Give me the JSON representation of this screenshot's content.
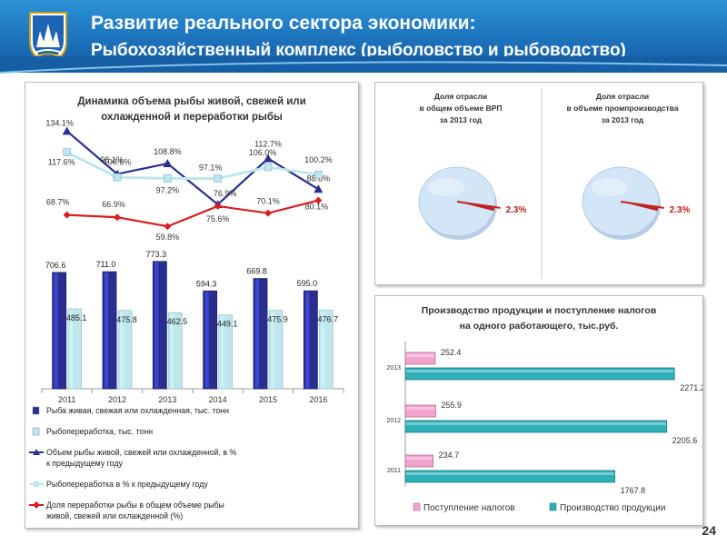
{
  "header": {
    "title_line1": "Развитие реального сектора экономики:",
    "title_line2": "Рыбохозяйственный комплекс (рыболовство и рыбоводство)"
  },
  "page_number": "24",
  "chart_data": [
    {
      "type": "bar+line",
      "title_line1": "Динамика объема рыбы живой, свежей или",
      "title_line2": "охлажденной и переработки рыбы",
      "categories": [
        "2011",
        "2012",
        "2013",
        "2014",
        "2015",
        "2016"
      ],
      "bar_series": [
        {
          "name": "Рыба живая, свежая или охлажденная, тыс. тонн",
          "color": "#2a2f8f",
          "values": [
            706.6,
            711.0,
            773.3,
            594.3,
            669.8,
            595.0
          ],
          "labels": [
            "706.6",
            "711.0",
            "773.3",
            "594.3",
            "669.8",
            "595.0"
          ]
        },
        {
          "name": "Рыбопереработка, тыс. тонн",
          "color": "#bfe6ec",
          "values": [
            485.1,
            475.8,
            462.5,
            449.1,
            475.9,
            476.7
          ],
          "labels": [
            "485.1",
            "475.8",
            "462.5",
            "449.1",
            "475.9",
            "476.7"
          ]
        }
      ],
      "line_series": [
        {
          "name": "Объем рыбы живой, свежей или охлажденной,  в % к предыдущему году",
          "color": "#2a2f8f",
          "marker": "triangle",
          "values": [
            134.1,
            100.6,
            108.8,
            76.9,
            112.7,
            88.8
          ],
          "labels": [
            "134.1%",
            "100.6%",
            "108.8%",
            "76.9%",
            "112.7%",
            "88.8%"
          ]
        },
        {
          "name": "Рыбопереработка в % к предыдущему году",
          "color": "#bfe6ec",
          "marker": "square",
          "values": [
            117.6,
            98.1,
            97.2,
            97.1,
            106.0,
            100.2
          ],
          "labels": [
            "117.6%",
            "98.1%",
            "97.2%",
            "97.1%",
            "106.0%",
            "100.2%"
          ]
        },
        {
          "name": "Доля переработки рыбы в общем объеме рыбы живой, свежей или охлажденной (%)",
          "color": "#d81e1e",
          "marker": "diamond",
          "values": [
            68.7,
            66.9,
            59.8,
            75.6,
            70.1,
            80.1
          ],
          "labels": [
            "68.7%",
            "66.9%",
            "59.8%",
            "75.6%",
            "70.1%",
            "80.1%"
          ]
        }
      ]
    },
    {
      "type": "pie",
      "title_line1": "Доля отрасли",
      "title_line2": "в общем объеме ВРП",
      "title_line3": "за 2013 год",
      "slices": [
        {
          "value": 2.3,
          "label": "2.3%",
          "color": "#c02020"
        },
        {
          "value": 97.7,
          "color": "#d3e6f7"
        }
      ]
    },
    {
      "type": "pie",
      "title_line1": "Доля отрасли",
      "title_line2": "в объеме промпроизводства",
      "title_line3": "за 2013 год",
      "slices": [
        {
          "value": 2.3,
          "label": "2.3%",
          "color": "#c02020"
        },
        {
          "value": 97.7,
          "color": "#d3e6f7"
        }
      ]
    },
    {
      "type": "bar",
      "orientation": "horizontal",
      "title_line1": "Производство продукции и поступление налогов",
      "title_line2": "на одного работающего, тыс.руб.",
      "categories": [
        "2013",
        "2012",
        "2011"
      ],
      "series": [
        {
          "name": "Поступление налогов",
          "color": "#f2a3cf",
          "values": [
            252.4,
            255.9,
            234.7
          ],
          "labels": [
            "252.4",
            "255.9",
            "234.7"
          ]
        },
        {
          "name": "Производство продукции",
          "color": "#2fb0b8",
          "values": [
            2271.2,
            2205.6,
            1767.8
          ],
          "labels": [
            "2271.2",
            "2205.6",
            "1767.8"
          ]
        }
      ]
    }
  ]
}
